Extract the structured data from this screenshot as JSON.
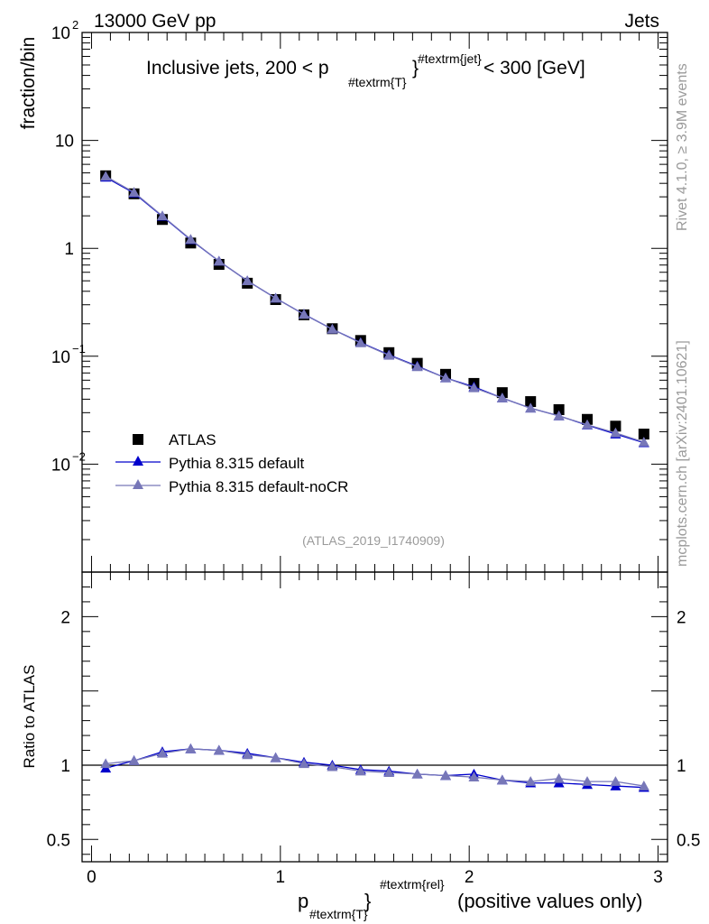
{
  "header": {
    "energy_label": "13000 GeV pp",
    "category_label": "Jets"
  },
  "side_labels": {
    "rivet": "Rivet 4.1.0, ≥ 3.9M events",
    "source": "mcplots.cern.ch [arXiv:2401.10621]"
  },
  "analysis_label": "(ATLAS_2019_I1740909)",
  "chart_data": [
    {
      "type": "scatter",
      "panel": "main",
      "yscale": "log",
      "ylim": [
        0.001,
        100
      ],
      "xlim": [
        -0.05,
        3.05
      ],
      "ylabel": "fraction/bin",
      "title": {
        "main": "Inclusive jets, 200 < p",
        "sub": "#textrm{T}",
        "sup": "#textrm{jet}",
        "tail": " < 300 [GeV]"
      },
      "y_ticks": [
        {
          "value": 100,
          "base": "10",
          "exp": "2"
        },
        {
          "value": 10,
          "base": "10",
          "exp": ""
        },
        {
          "value": 1,
          "base": "1",
          "exp": ""
        },
        {
          "value": 0.1,
          "base": "10",
          "exp": "−1"
        },
        {
          "value": 0.01,
          "base": "10",
          "exp": "−2"
        }
      ],
      "x": [
        0.075,
        0.225,
        0.375,
        0.525,
        0.675,
        0.825,
        0.975,
        1.125,
        1.275,
        1.425,
        1.575,
        1.725,
        1.875,
        2.025,
        2.175,
        2.325,
        2.475,
        2.625,
        2.775,
        2.925
      ],
      "series": [
        {
          "name": "ATLAS",
          "marker": "square",
          "color": "#000000",
          "values": [
            4.7,
            3.2,
            1.85,
            1.12,
            0.71,
            0.475,
            0.335,
            0.242,
            0.18,
            0.14,
            0.108,
            0.086,
            0.068,
            0.056,
            0.046,
            0.038,
            0.032,
            0.026,
            0.0225,
            0.019
          ]
        },
        {
          "name": "Pythia 8.315 default",
          "marker": "triangle",
          "color": "#0000cc",
          "values": [
            4.55,
            3.25,
            1.98,
            1.2,
            0.76,
            0.5,
            0.345,
            0.245,
            0.178,
            0.134,
            0.103,
            0.081,
            0.063,
            0.052,
            0.041,
            0.033,
            0.028,
            0.023,
            0.019,
            0.0158
          ]
        },
        {
          "name": "Pythia 8.315 default-noCR",
          "marker": "triangle",
          "color": "#7777b8",
          "values": [
            4.65,
            3.3,
            2.0,
            1.21,
            0.76,
            0.5,
            0.345,
            0.244,
            0.178,
            0.133,
            0.102,
            0.08,
            0.063,
            0.051,
            0.041,
            0.033,
            0.028,
            0.0232,
            0.0195,
            0.016
          ]
        }
      ]
    },
    {
      "type": "line",
      "panel": "ratio",
      "ylim": [
        0.35,
        2.3
      ],
      "ylabel": "Ratio to ATLAS",
      "xlabel": {
        "main": "p",
        "sub": "#textrm{T}",
        "sup": "#textrm{rel}",
        "tail": " (positive values only)"
      },
      "y_ticks": [
        {
          "value": 2,
          "label": "2"
        },
        {
          "value": 1,
          "label": "1"
        },
        {
          "value": 0.5,
          "label": "0.5"
        }
      ],
      "x_ticks": [
        {
          "value": 0,
          "label": "0"
        },
        {
          "value": 1,
          "label": "1"
        },
        {
          "value": 2,
          "label": "2"
        },
        {
          "value": 3,
          "label": "3"
        }
      ],
      "x": [
        0.075,
        0.225,
        0.375,
        0.525,
        0.675,
        0.825,
        0.975,
        1.125,
        1.275,
        1.425,
        1.575,
        1.725,
        1.875,
        2.025,
        2.175,
        2.325,
        2.475,
        2.625,
        2.775,
        2.925
      ],
      "series": [
        {
          "name": "Pythia 8.315 default",
          "color": "#0000cc",
          "values": [
            0.98,
            1.03,
            1.09,
            1.11,
            1.1,
            1.08,
            1.05,
            1.02,
            1.0,
            0.97,
            0.96,
            0.94,
            0.93,
            0.94,
            0.9,
            0.88,
            0.88,
            0.87,
            0.86,
            0.85
          ]
        },
        {
          "name": "Pythia 8.315 default-noCR",
          "color": "#7777b8",
          "values": [
            1.01,
            1.03,
            1.08,
            1.11,
            1.1,
            1.07,
            1.05,
            1.01,
            0.99,
            0.96,
            0.95,
            0.94,
            0.93,
            0.92,
            0.9,
            0.89,
            0.91,
            0.89,
            0.89,
            0.86
          ]
        }
      ]
    }
  ]
}
